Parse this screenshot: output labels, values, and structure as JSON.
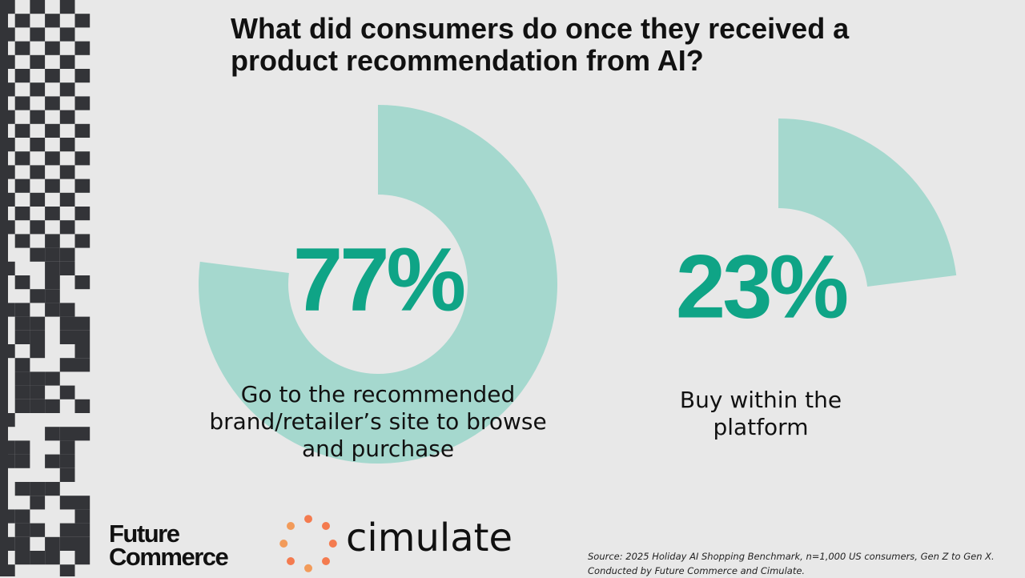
{
  "chart_data": {
    "type": "donut",
    "title": "What did consumers do once they received a product recommendation from AI?",
    "categories": [
      "Go to the recommended brand/retailer’s site to browse and purchase",
      "Buy within the platform"
    ],
    "values": [
      77,
      23
    ],
    "value_labels": [
      "77%",
      "23%"
    ],
    "color": "#a5d8ce"
  },
  "logos": {
    "future": [
      "Future",
      "Commerce"
    ],
    "cimulate": "cimulate"
  },
  "source": [
    "Source: 2025 Holiday AI Shopping Benchmark, n=1,000 US consumers, Gen Z to Gen X.",
    "Conducted by Future Commerce and Cimulate."
  ]
}
